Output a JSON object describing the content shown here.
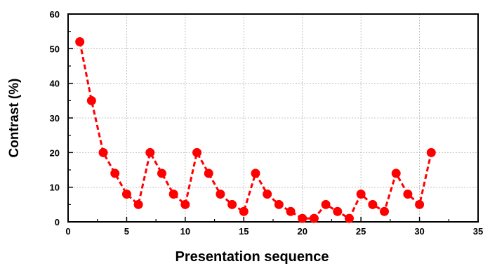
{
  "chart_data": {
    "type": "line",
    "xlabel": "Presentation sequence",
    "ylabel": "Contrast (%)",
    "xlim": [
      0,
      35
    ],
    "ylim": [
      0,
      60
    ],
    "xticks": [
      0,
      5,
      10,
      15,
      20,
      25,
      30,
      35
    ],
    "yticks": [
      0,
      10,
      20,
      30,
      40,
      50,
      60
    ],
    "grid": true,
    "color": "#ff0000",
    "series": [
      {
        "x": [
          1,
          2,
          3,
          4,
          5,
          6,
          7,
          8,
          9,
          10,
          11,
          12,
          13,
          14,
          15,
          16,
          17,
          18,
          19,
          20,
          21,
          22,
          23,
          24,
          25,
          26,
          27,
          28,
          29,
          30,
          31
        ],
        "values": [
          52,
          35,
          20,
          14,
          8,
          5,
          20,
          14,
          8,
          5,
          20,
          14,
          8,
          5,
          3,
          14,
          8,
          5,
          3,
          1,
          1,
          5,
          3,
          1,
          8,
          5,
          3,
          14,
          8,
          5,
          20
        ]
      }
    ]
  }
}
